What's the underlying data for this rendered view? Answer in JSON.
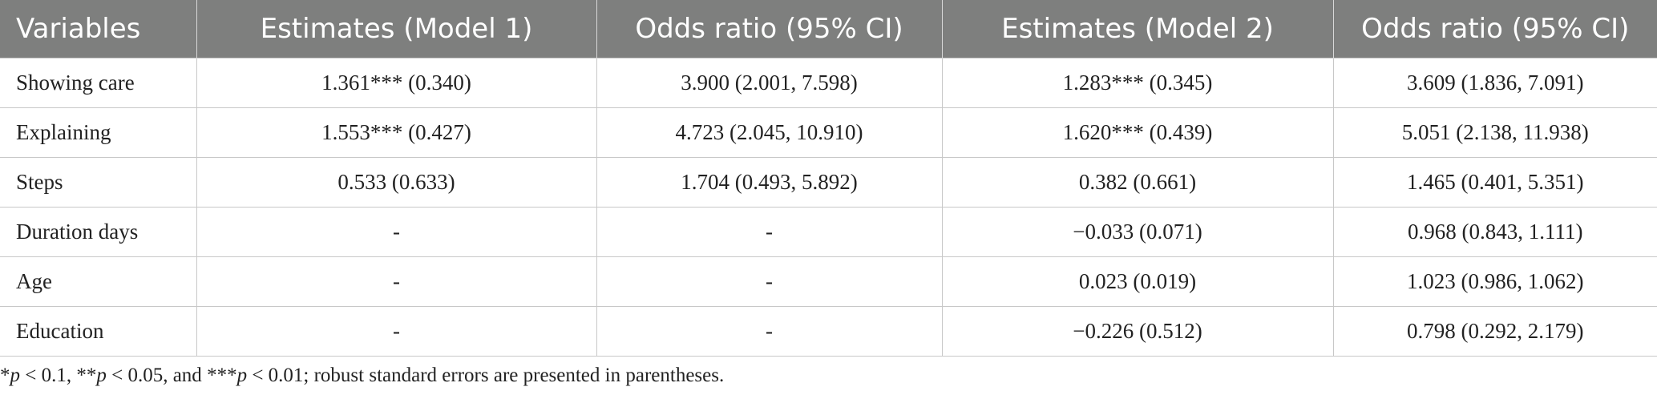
{
  "table": {
    "headers": [
      "Variables",
      "Estimates (Model 1)",
      "Odds ratio (95% CI)",
      "Estimates (Model 2)",
      "Odds ratio (95% CI)"
    ],
    "rows": [
      [
        "Showing care",
        "1.361*** (0.340)",
        "3.900 (2.001, 7.598)",
        "1.283*** (0.345)",
        "3.609 (1.836, 7.091)"
      ],
      [
        "Explaining",
        "1.553*** (0.427)",
        "4.723 (2.045, 10.910)",
        "1.620*** (0.439)",
        "5.051 (2.138, 11.938)"
      ],
      [
        "Steps",
        "0.533 (0.633)",
        "1.704 (0.493, 5.892)",
        "0.382 (0.661)",
        "1.465 (0.401, 5.351)"
      ],
      [
        "Duration days",
        "-",
        "-",
        "−0.033 (0.071)",
        "0.968 (0.843, 1.111)"
      ],
      [
        "Age",
        "-",
        "-",
        "0.023 (0.019)",
        "1.023 (0.986, 1.062)"
      ],
      [
        "Education",
        "-",
        "-",
        "−0.226 (0.512)",
        "0.798 (0.292, 2.179)"
      ]
    ]
  },
  "footnote": {
    "p1_mark": "*",
    "p_symbol": "p",
    "p1_text": " < 0.1, ",
    "p2_mark": "**",
    "p2_text": " < 0.05, and ",
    "p3_mark": "***",
    "p3_text": " < 0.01; robust standard errors are presented in parentheses."
  }
}
